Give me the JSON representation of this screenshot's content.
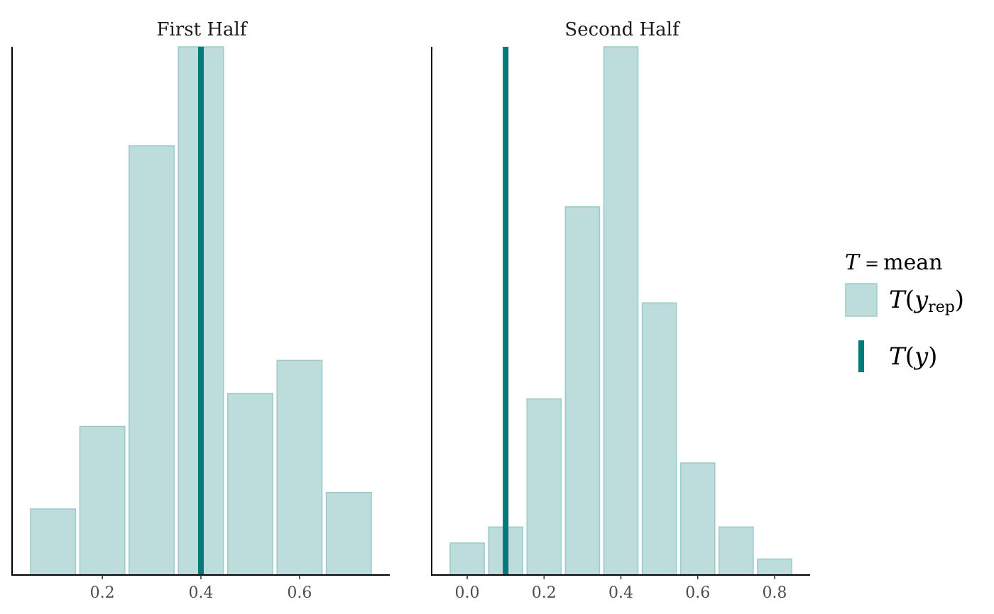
{
  "chart_data": [
    {
      "type": "bar",
      "title": "First Half",
      "xlim": [
        0.05,
        0.75
      ],
      "ylim": [
        0,
        32
      ],
      "ticks": [
        "0.2",
        "0.4",
        "0.6"
      ],
      "bins": [
        {
          "x0": 0.05,
          "x1": 0.15,
          "count": 4
        },
        {
          "x0": 0.15,
          "x1": 0.25,
          "count": 9
        },
        {
          "x0": 0.25,
          "x1": 0.35,
          "count": 26
        },
        {
          "x0": 0.35,
          "x1": 0.45,
          "count": 32
        },
        {
          "x0": 0.45,
          "x1": 0.55,
          "count": 11
        },
        {
          "x0": 0.55,
          "x1": 0.65,
          "count": 13
        },
        {
          "x0": 0.65,
          "x1": 0.75,
          "count": 5
        }
      ],
      "observed": 0.4
    },
    {
      "type": "bar",
      "title": "Second Half",
      "xlim": [
        -0.05,
        0.85
      ],
      "ylim": [
        0,
        33
      ],
      "ticks": [
        "0.0",
        "0.2",
        "0.4",
        "0.6",
        "0.8"
      ],
      "bins": [
        {
          "x0": -0.05,
          "x1": 0.05,
          "count": 2
        },
        {
          "x0": 0.05,
          "x1": 0.15,
          "count": 3
        },
        {
          "x0": 0.15,
          "x1": 0.25,
          "count": 11
        },
        {
          "x0": 0.25,
          "x1": 0.35,
          "count": 23
        },
        {
          "x0": 0.35,
          "x1": 0.45,
          "count": 33
        },
        {
          "x0": 0.45,
          "x1": 0.55,
          "count": 17
        },
        {
          "x0": 0.55,
          "x1": 0.65,
          "count": 7
        },
        {
          "x0": 0.65,
          "x1": 0.75,
          "count": 3
        },
        {
          "x0": 0.75,
          "x1": 0.85,
          "count": 1
        }
      ],
      "observed": 0.1
    }
  ],
  "legend": {
    "title_var": "T",
    "title_eq": "=",
    "title_stat": "mean",
    "rep_T": "T",
    "rep_y": "y",
    "rep_sub": "rep",
    "obs_T": "T",
    "obs_y": "y",
    "paren_open": "(",
    "paren_close": ")"
  },
  "colors": {
    "bar_fill": "#bddcdc",
    "bar_stroke": "#9ccaca",
    "observed_line": "#007a7a",
    "axis": "#000000"
  }
}
